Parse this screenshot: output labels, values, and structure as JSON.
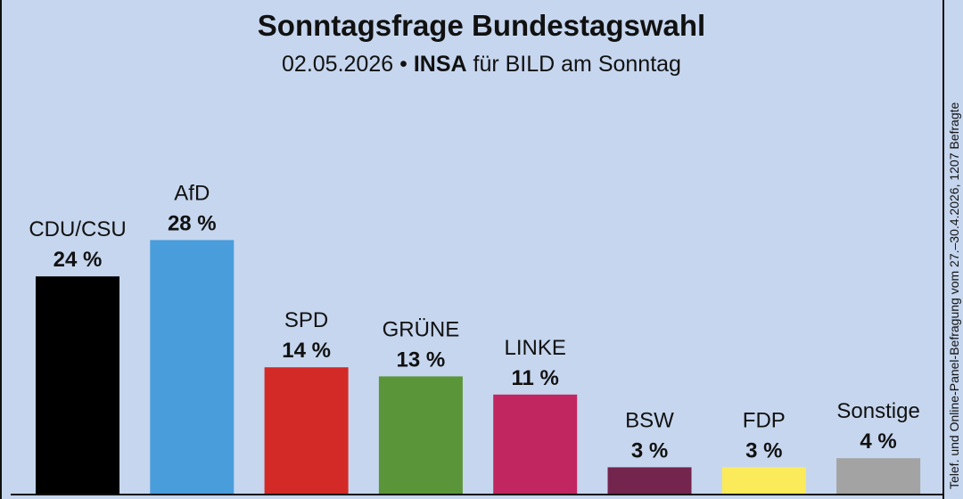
{
  "header": {
    "title": "Sonntagsfrage Bundestagswahl",
    "date": "02.05.2026",
    "separator": "•",
    "institute": "INSA",
    "client": "für BILD am Sonntag"
  },
  "source_note": "Telef. und Online-Panel-Befragung vom 27.–30.4.2026, 1207 Befragte",
  "chart_data": {
    "type": "bar",
    "title": "Sonntagsfrage Bundestagswahl",
    "subtitle": "02.05.2026 • INSA für BILD am Sonntag",
    "unit": "%",
    "categories": [
      "CDU/CSU",
      "AfD",
      "SPD",
      "GRÜNE",
      "LINKE",
      "BSW",
      "FDP",
      "Sonstige"
    ],
    "values": [
      24,
      28,
      14,
      13,
      11,
      3,
      3,
      4
    ],
    "value_labels": [
      "24 %",
      "28 %",
      "14 %",
      "13 %",
      "11 %",
      "3 %",
      "3 %",
      "4 %"
    ],
    "colors": [
      "#000000",
      "#4a9ddb",
      "#d32a27",
      "#5b953a",
      "#c12660",
      "#74254e",
      "#fbeb5b",
      "#a3a3a3"
    ],
    "grid": false,
    "legend": "none"
  }
}
